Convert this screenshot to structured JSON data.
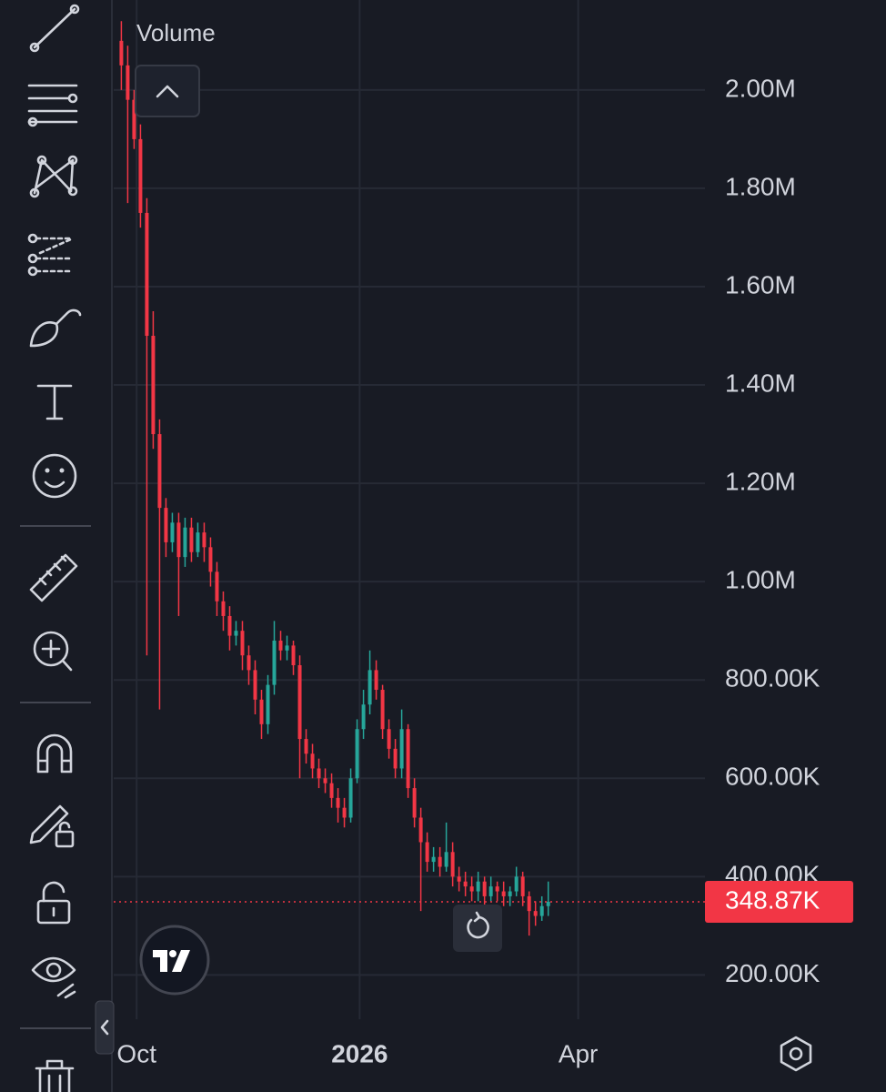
{
  "chart_data": {
    "type": "candlestick",
    "legend_title": "Volume",
    "up_color": "#26a69a",
    "down_color": "#f23645",
    "open": [
      2100000,
      2050000,
      1980000,
      1900000,
      1750000,
      1500000,
      1300000,
      1150000,
      1080000,
      1120000,
      1050000,
      1110000,
      1060000,
      1100000,
      1070000,
      1020000,
      960000,
      930000,
      890000,
      900000,
      850000,
      820000,
      760000,
      710000,
      790000,
      880000,
      860000,
      870000,
      830000,
      680000,
      650000,
      620000,
      600000,
      590000,
      560000,
      540000,
      520000,
      600000,
      700000,
      750000,
      820000,
      780000,
      700000,
      660000,
      620000,
      700000,
      580000,
      520000,
      470000,
      430000,
      440000,
      420000,
      450000,
      400000,
      390000,
      380000,
      370000,
      390000,
      360000,
      380000,
      370000,
      360000,
      370000,
      400000,
      360000,
      330000,
      320000,
      340000
    ],
    "high": [
      2140000,
      2090000,
      2000000,
      1930000,
      1780000,
      1550000,
      1330000,
      1170000,
      1140000,
      1140000,
      1130000,
      1130000,
      1120000,
      1120000,
      1090000,
      1040000,
      980000,
      950000,
      920000,
      920000,
      870000,
      840000,
      780000,
      810000,
      920000,
      900000,
      890000,
      880000,
      850000,
      700000,
      670000,
      640000,
      620000,
      610000,
      580000,
      560000,
      620000,
      720000,
      780000,
      860000,
      840000,
      790000,
      720000,
      680000,
      740000,
      710000,
      600000,
      540000,
      490000,
      460000,
      460000,
      510000,
      470000,
      420000,
      410000,
      400000,
      410000,
      400000,
      400000,
      390000,
      390000,
      380000,
      420000,
      410000,
      370000,
      350000,
      360000,
      390000
    ],
    "low": [
      2000000,
      1770000,
      1880000,
      1720000,
      850000,
      1270000,
      740000,
      1050000,
      1060000,
      930000,
      1030000,
      1040000,
      1050000,
      1040000,
      990000,
      930000,
      900000,
      860000,
      870000,
      820000,
      790000,
      730000,
      680000,
      690000,
      770000,
      840000,
      840000,
      810000,
      600000,
      630000,
      600000,
      580000,
      570000,
      540000,
      510000,
      500000,
      510000,
      590000,
      680000,
      730000,
      760000,
      680000,
      640000,
      600000,
      600000,
      560000,
      500000,
      330000,
      410000,
      410000,
      400000,
      410000,
      380000,
      370000,
      360000,
      350000,
      350000,
      340000,
      350000,
      350000,
      340000,
      340000,
      360000,
      340000,
      280000,
      300000,
      310000,
      320000
    ],
    "close": [
      2050000,
      1980000,
      1900000,
      1750000,
      1500000,
      1300000,
      1150000,
      1080000,
      1120000,
      1050000,
      1110000,
      1060000,
      1100000,
      1070000,
      1020000,
      960000,
      930000,
      890000,
      900000,
      850000,
      820000,
      760000,
      710000,
      790000,
      880000,
      860000,
      870000,
      830000,
      680000,
      650000,
      620000,
      600000,
      590000,
      560000,
      540000,
      520000,
      600000,
      700000,
      750000,
      820000,
      780000,
      700000,
      660000,
      620000,
      700000,
      580000,
      520000,
      470000,
      430000,
      440000,
      420000,
      450000,
      400000,
      390000,
      380000,
      370000,
      390000,
      360000,
      380000,
      370000,
      360000,
      370000,
      400000,
      360000,
      330000,
      320000,
      340000,
      348870
    ],
    "last_price": {
      "value": 348870,
      "label": "348.87K"
    },
    "xlim": [
      -1.2,
      91.6
    ],
    "xticks": [
      {
        "value": 2.4,
        "label": "Oct"
      },
      {
        "value": 37.4,
        "label": "2026"
      },
      {
        "value": 71.7,
        "label": "Apr"
      }
    ],
    "ylim": [
      110000,
      2183000
    ],
    "yticks": [
      {
        "value": 200000,
        "label": "200.00K"
      },
      {
        "value": 400000,
        "label": "400.00K"
      },
      {
        "value": 600000,
        "label": "600.00K"
      },
      {
        "value": 800000,
        "label": "800.00K"
      },
      {
        "value": 1000000,
        "label": "1.00M"
      },
      {
        "value": 1200000,
        "label": "1.20M"
      },
      {
        "value": 1400000,
        "label": "1.40M"
      },
      {
        "value": 1600000,
        "label": "1.60M"
      },
      {
        "value": 1800000,
        "label": "1.80M"
      },
      {
        "value": 2000000,
        "label": "2.00M"
      }
    ],
    "grid": true
  }
}
